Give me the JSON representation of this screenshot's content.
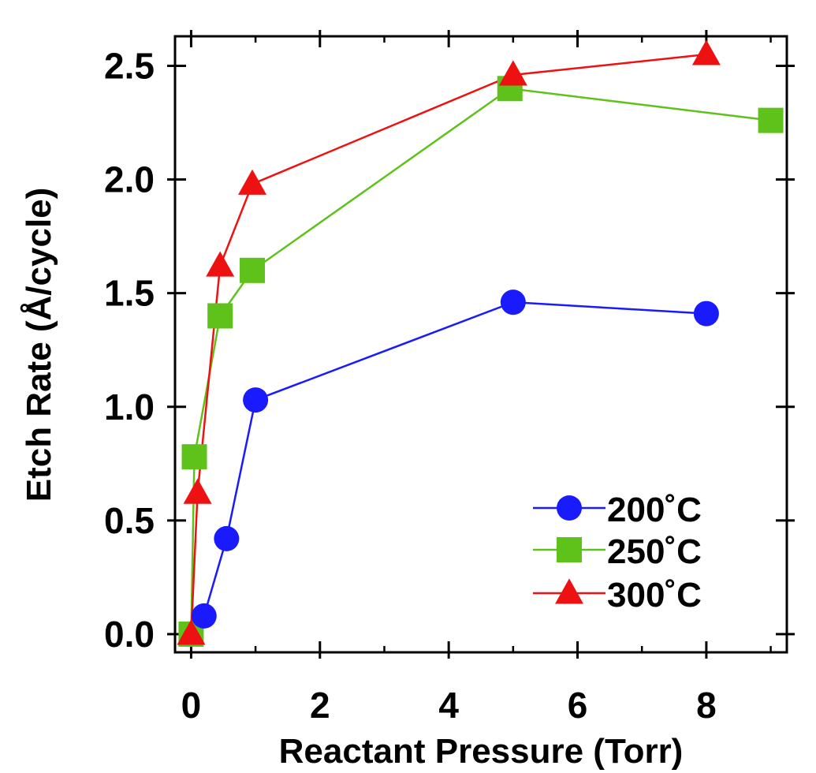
{
  "chart_data": {
    "type": "line",
    "xlabel": "Reactant Pressure (Torr)",
    "ylabel": "Etch Rate (Å/cycle)",
    "xlim": [
      -0.25,
      9.25
    ],
    "ylim": [
      -0.08,
      2.63
    ],
    "xticks": [
      0,
      2,
      4,
      6,
      8
    ],
    "xtick_labels": [
      "0",
      "2",
      "4",
      "6",
      "8"
    ],
    "yticks": [
      0.0,
      0.5,
      1.0,
      1.5,
      2.0,
      2.5
    ],
    "ytick_labels": [
      "0.0",
      "0.5",
      "1.0",
      "1.5",
      "2.0",
      "2.5"
    ],
    "grid": false,
    "legend_position": "bottom-right",
    "series": [
      {
        "name": "200˚C",
        "color": "#1a1aff",
        "marker": "circle",
        "x": [
          0.2,
          0.55,
          1.0,
          5.0,
          8.0
        ],
        "y": [
          0.08,
          0.42,
          1.03,
          1.46,
          1.41
        ]
      },
      {
        "name": "250˚C",
        "color": "#5ec21a",
        "marker": "square",
        "x": [
          0.0,
          0.05,
          0.45,
          0.95,
          4.95,
          9.0
        ],
        "y": [
          0.0,
          0.78,
          1.4,
          1.6,
          2.4,
          2.26
        ]
      },
      {
        "name": "300˚C",
        "color": "#ee1111",
        "marker": "triangle",
        "x": [
          0.0,
          0.1,
          0.45,
          0.95,
          5.0,
          8.0
        ],
        "y": [
          0.0,
          0.62,
          1.62,
          1.98,
          2.46,
          2.55
        ]
      }
    ]
  }
}
